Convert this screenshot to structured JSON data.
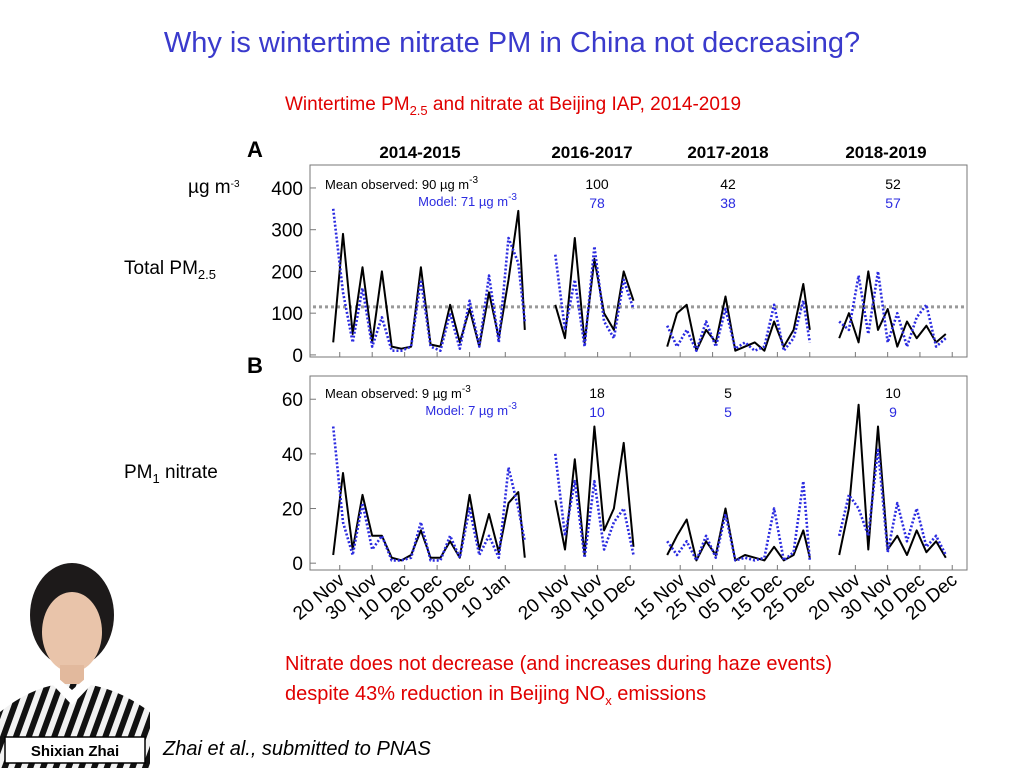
{
  "header": {
    "title": "Why is wintertime nitrate PM in China not decreasing?"
  },
  "subtitle": {
    "text_1": "Wintertime PM",
    "sub": "2.5",
    "text_2": " and nitrate at Beijing IAP, 2014-2019"
  },
  "chart_data": {
    "type": "line",
    "seasons": [
      "2014-2015",
      "2016-2017",
      "2017-2018",
      "2018-2019"
    ],
    "unit": {
      "base": "µg m",
      "exp": "-3"
    },
    "xlim": [
      [
        16,
        77
      ],
      [
        15,
        42
      ],
      [
        9,
        55
      ],
      [
        13,
        48
      ]
    ],
    "xticks": [
      [
        {
          "value": 19,
          "label": "20 Nov"
        },
        {
          "value": 29,
          "label": "30 Nov"
        },
        {
          "value": 39,
          "label": "10 Dec"
        },
        {
          "value": 49,
          "label": "20 Dec"
        },
        {
          "value": 59,
          "label": "30 Dec"
        },
        {
          "value": 70,
          "label": "10 Jan"
        }
      ],
      [
        {
          "value": 19,
          "label": "20 Nov"
        },
        {
          "value": 29,
          "label": "30 Nov"
        },
        {
          "value": 39,
          "label": "10 Dec"
        }
      ],
      [
        {
          "value": 14,
          "label": "15 Nov"
        },
        {
          "value": 24,
          "label": "25 Nov"
        },
        {
          "value": 34,
          "label": "05 Dec"
        },
        {
          "value": 44,
          "label": "15 Dec"
        },
        {
          "value": 54,
          "label": "25 Dec"
        }
      ],
      [
        {
          "value": 19,
          "label": "20 Nov"
        },
        {
          "value": 29,
          "label": "30 Nov"
        },
        {
          "value": 39,
          "label": "10 Dec"
        },
        {
          "value": 49,
          "label": "20 Dec"
        }
      ]
    ],
    "x": [
      [
        17,
        20,
        23,
        26,
        29,
        32,
        35,
        38,
        41,
        44,
        47,
        50,
        53,
        56,
        59,
        62,
        65,
        68,
        71,
        74,
        76
      ],
      [
        16,
        19,
        22,
        25,
        28,
        31,
        34,
        37,
        40
      ],
      [
        10,
        13,
        16,
        19,
        22,
        25,
        28,
        31,
        34,
        37,
        40,
        43,
        46,
        49,
        52,
        54
      ],
      [
        14,
        17,
        20,
        23,
        26,
        29,
        32,
        35,
        38,
        41,
        44,
        47
      ]
    ],
    "panels": [
      {
        "letter": "A",
        "ylabel": {
          "text": "Total PM",
          "sub": "2.5"
        },
        "ylim": [
          -5,
          455
        ],
        "yticks": [
          0,
          100,
          200,
          300,
          400
        ],
        "reference_line": 115,
        "series": [
          {
            "name": "Mean observed:",
            "color": "#000000",
            "dashed": false,
            "means": [
              90,
              100,
              42,
              52
            ],
            "values": [
              [
                30,
                290,
                50,
                210,
                30,
                200,
                20,
                15,
                20,
                210,
                25,
                20,
                120,
                30,
                110,
                20,
                150,
                40,
                180,
                345,
                60
              ],
              [
                120,
                40,
                280,
                30,
                230,
                100,
                60,
                200,
                130
              ],
              [
                20,
                100,
                120,
                10,
                60,
                30,
                140,
                10,
                20,
                30,
                10,
                80,
                20,
                60,
                170,
                60
              ],
              [
                40,
                100,
                30,
                200,
                60,
                110,
                20,
                80,
                40,
                70,
                30,
                50
              ]
            ]
          },
          {
            "name": "Model:",
            "color": "#2b2be0",
            "dashed": true,
            "means": [
              71,
              78,
              38,
              57
            ],
            "values": [
              [
                350,
                150,
                30,
                160,
                20,
                90,
                10,
                10,
                20,
                180,
                20,
                10,
                100,
                15,
                130,
                20,
                190,
                30,
                280,
                220,
                80
              ],
              [
                240,
                60,
                180,
                20,
                260,
                80,
                40,
                180,
                110
              ],
              [
                70,
                20,
                60,
                10,
                80,
                20,
                110,
                15,
                30,
                10,
                20,
                120,
                10,
                40,
                130,
                30
              ],
              [
                80,
                60,
                190,
                50,
                200,
                30,
                100,
                20,
                90,
                120,
                20,
                40
              ]
            ]
          }
        ]
      },
      {
        "letter": "B",
        "ylabel": {
          "text": "PM",
          "sub": "1",
          "text_2": " nitrate"
        },
        "ylim": [
          -2.5,
          68.5
        ],
        "yticks": [
          0,
          20,
          40,
          60
        ],
        "series": [
          {
            "name": "Mean observed:",
            "color": "#000000",
            "dashed": false,
            "means": [
              9,
              18,
              5,
              10
            ],
            "values": [
              [
                3,
                33,
                5,
                25,
                10,
                10,
                2,
                1,
                3,
                12,
                2,
                2,
                8,
                2,
                25,
                5,
                18,
                4,
                22,
                26,
                2
              ],
              [
                23,
                5,
                38,
                3,
                50,
                12,
                20,
                44,
                6
              ],
              [
                3,
                10,
                16,
                1,
                8,
                3,
                20,
                1,
                3,
                2,
                1,
                6,
                1,
                3,
                12,
                2
              ],
              [
                3,
                20,
                58,
                5,
                50,
                5,
                10,
                3,
                12,
                4,
                8,
                2
              ]
            ]
          },
          {
            "name": "Model:",
            "color": "#2b2be0",
            "dashed": true,
            "means": [
              7,
              10,
              5,
              9
            ],
            "values": [
              [
                50,
                15,
                3,
                22,
                5,
                10,
                1,
                1,
                2,
                15,
                1,
                1,
                10,
                2,
                20,
                3,
                10,
                2,
                35,
                20,
                8
              ],
              [
                40,
                10,
                30,
                2,
                30,
                5,
                15,
                20,
                3
              ],
              [
                8,
                3,
                8,
                1,
                10,
                2,
                18,
                1,
                2,
                1,
                2,
                20,
                1,
                4,
                30,
                1
              ],
              [
                10,
                25,
                20,
                10,
                42,
                4,
                22,
                8,
                20,
                6,
                10,
                3
              ]
            ]
          }
        ]
      }
    ]
  },
  "note": {
    "line_1": "Nitrate does not decrease (and increases during haze events)",
    "line_2a": "despite 43% reduction in Beijing NO",
    "line_2_sub": "x",
    "line_2b": " emissions"
  },
  "citation": "Zhai et al., submitted to PNAS",
  "photo_caption": "Shixian Zhai"
}
